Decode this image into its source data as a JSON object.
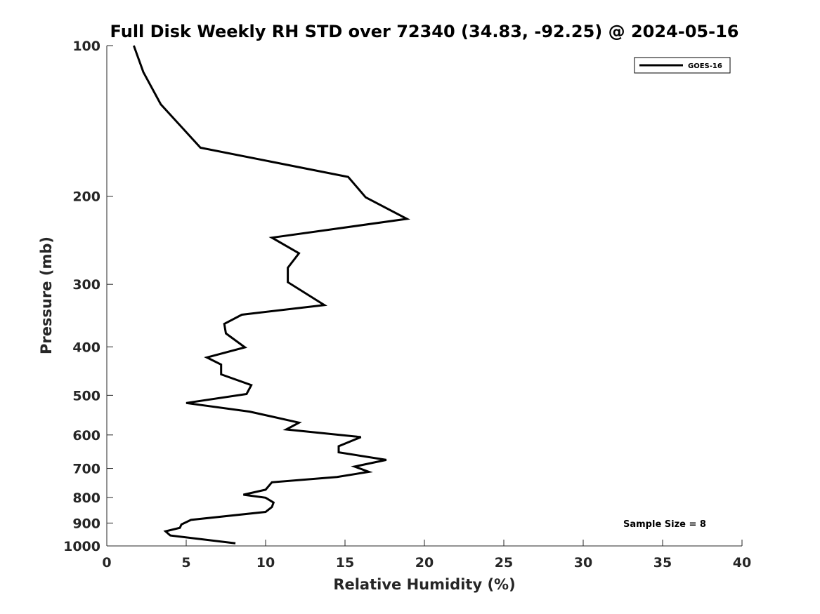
{
  "chart_data": {
    "type": "line",
    "title": "Full Disk Weekly RH STD over 72340 (34.83, -92.25) @ 2024-05-16",
    "xlabel": "Relative Humidity (%)",
    "ylabel": "Pressure (mb)",
    "xlim": [
      0,
      40
    ],
    "ylim": [
      1000,
      100
    ],
    "yscale": "log",
    "y_inverted": true,
    "xticks": [
      0,
      5,
      10,
      15,
      20,
      25,
      30,
      35,
      40
    ],
    "yticks": [
      100,
      200,
      300,
      400,
      500,
      600,
      700,
      800,
      900,
      1000
    ],
    "grid": false,
    "legend_position": "top-right",
    "annotation": "Sample Size = 8",
    "series": [
      {
        "name": "GOES-16",
        "color": "#000000",
        "x": [
          1.7,
          2.3,
          3.4,
          5.9,
          15.2,
          16.3,
          18.9,
          10.4,
          12.1,
          11.4,
          11.4,
          13.7,
          8.5,
          7.4,
          7.5,
          8.7,
          6.3,
          7.2,
          7.2,
          9.1,
          8.8,
          5.0,
          9.0,
          12.1,
          11.3,
          16.0,
          14.6,
          14.6,
          17.6,
          15.6,
          16.5,
          14.5,
          10.4,
          10.0,
          8.6,
          10.0,
          10.5,
          10.4,
          10.0,
          5.3,
          4.7,
          4.6,
          3.7,
          4.0,
          8.1
        ],
        "y": [
          100,
          113,
          131,
          160,
          183,
          201,
          222,
          242,
          260,
          278,
          297,
          330,
          345,
          360,
          376,
          401,
          420,
          434,
          454,
          477,
          497,
          518,
          539,
          567,
          585,
          606,
          632,
          650,
          673,
          694,
          711,
          728,
          746,
          772,
          790,
          801,
          819,
          836,
          855,
          887,
          906,
          920,
          935,
          953,
          988
        ]
      }
    ]
  }
}
